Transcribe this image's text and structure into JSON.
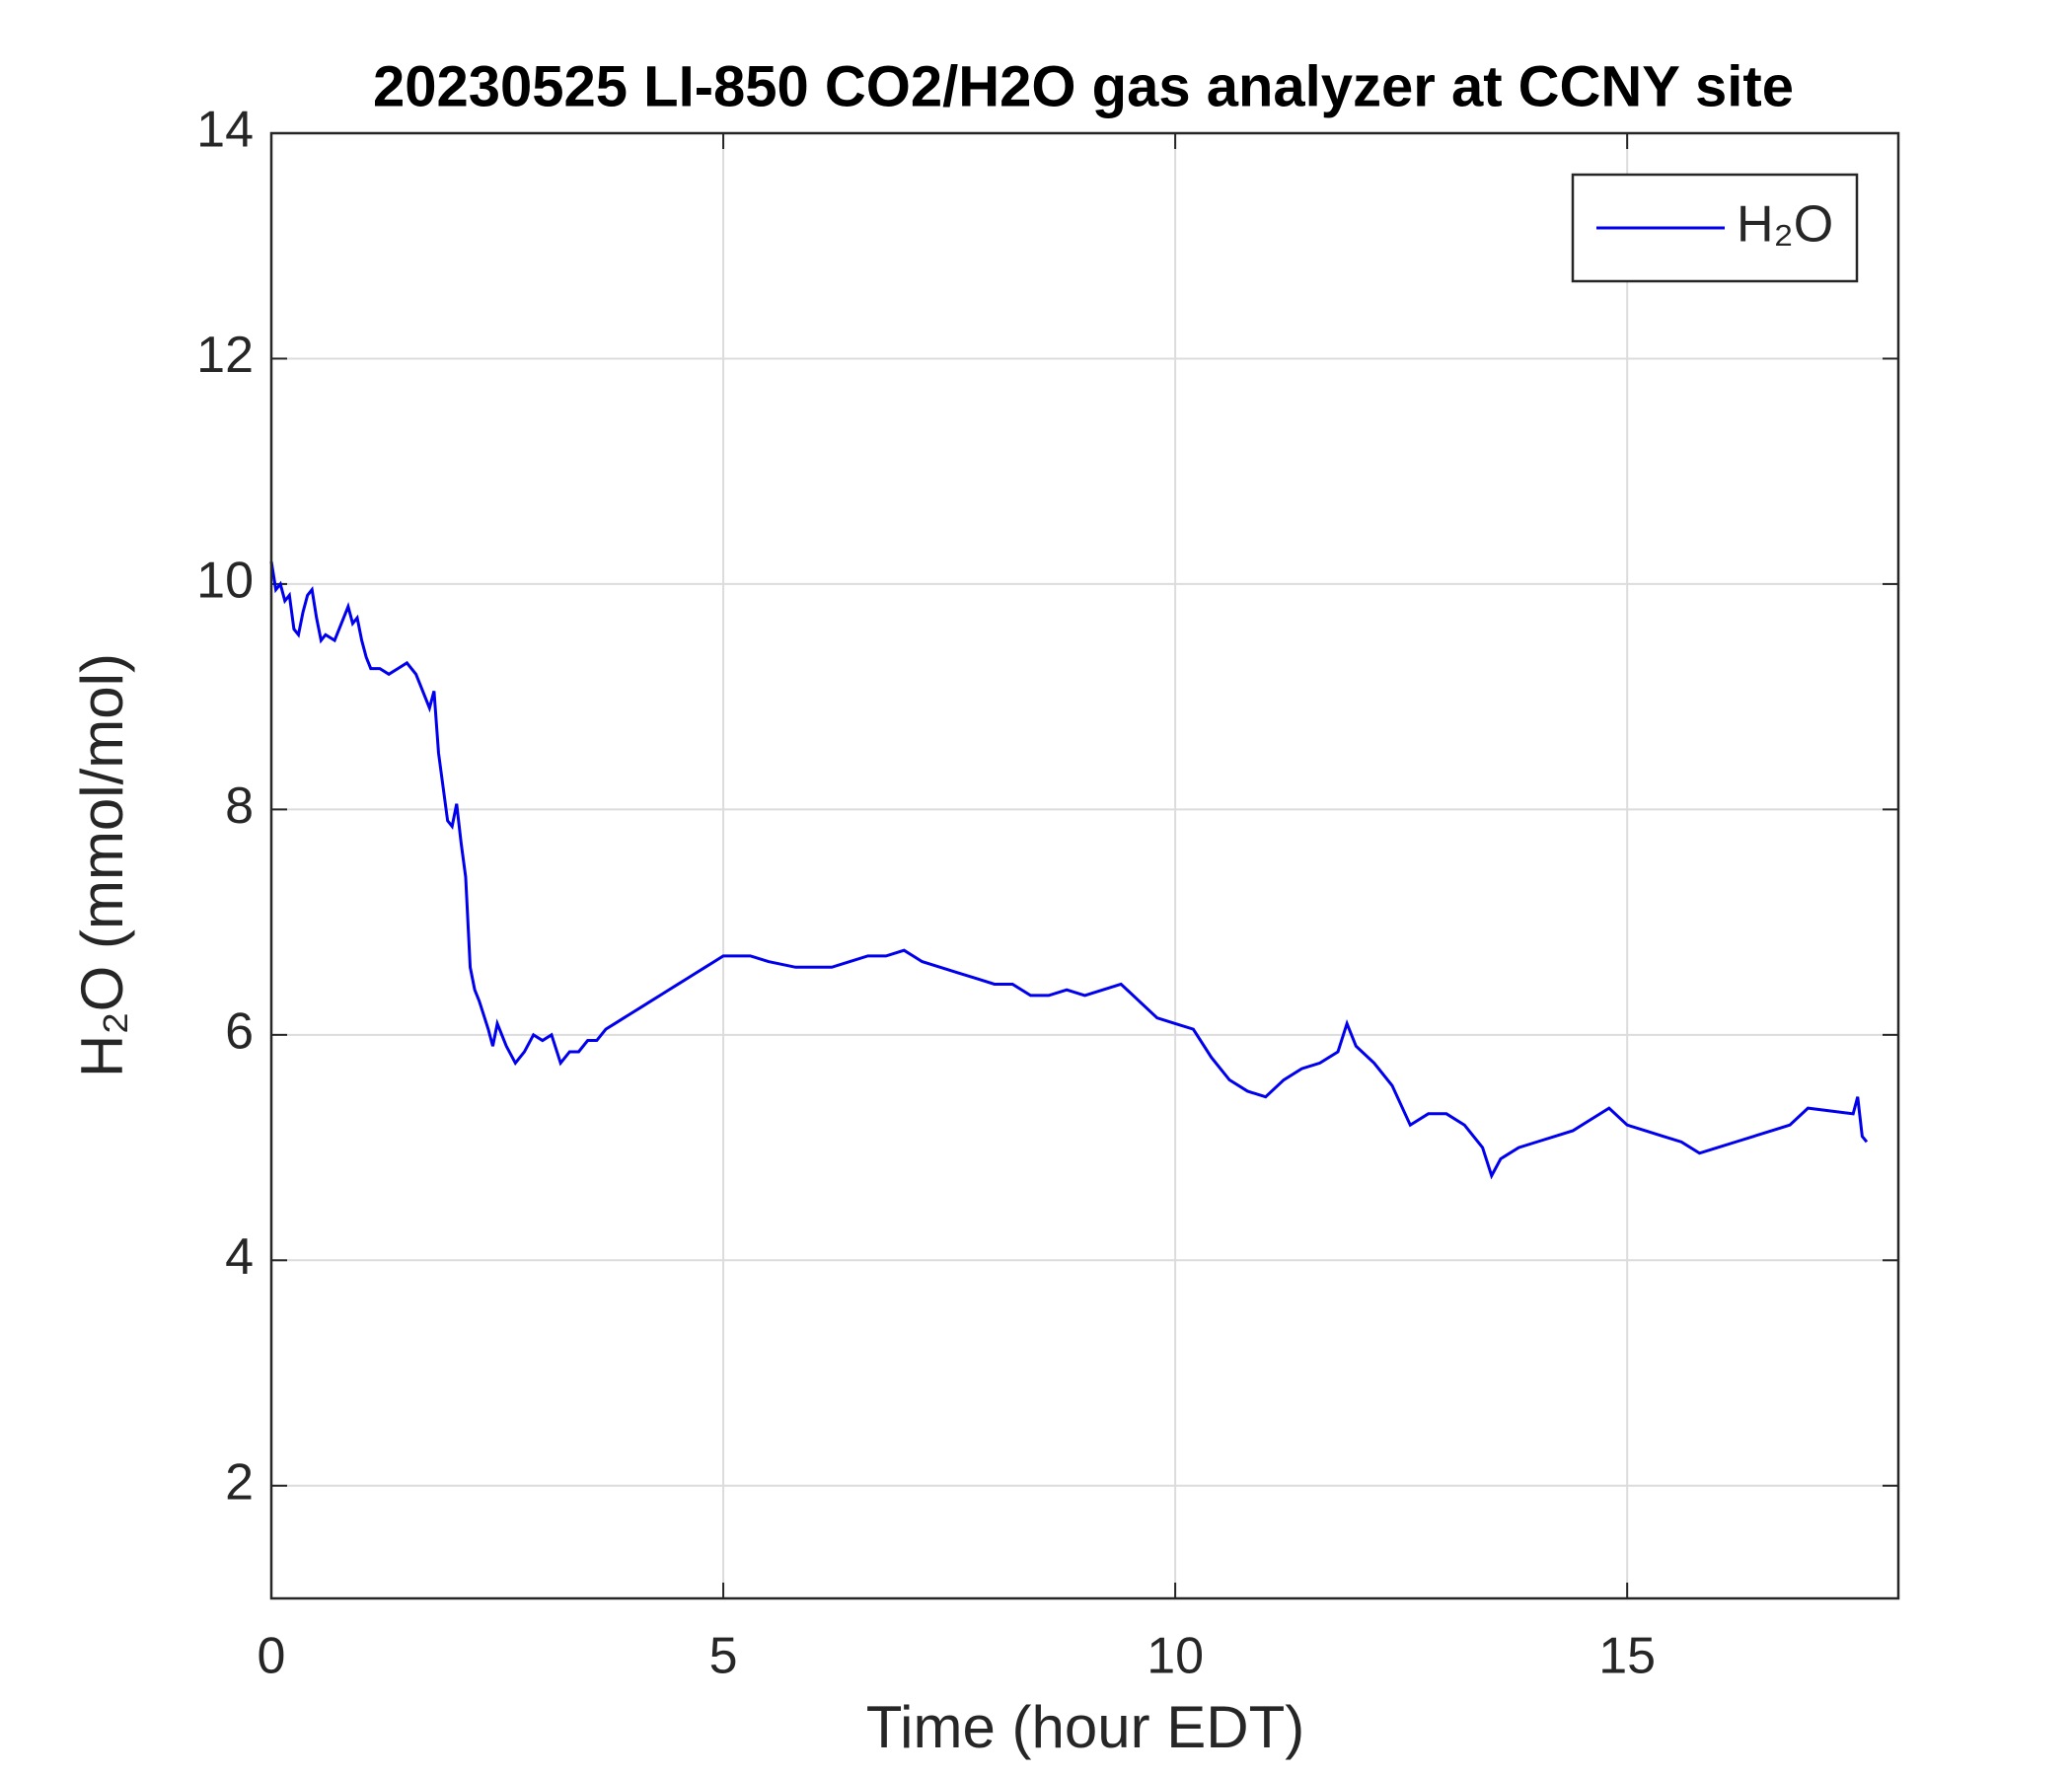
{
  "chart_data": {
    "type": "line",
    "title": "20230525 LI-850 CO2/H2O gas analyzer at CCNY site",
    "xlabel": "Time (hour EDT)",
    "ylabel": "H₂O (mmol/mol)",
    "x": [
      0,
      0.05,
      0.1,
      0.15,
      0.2,
      0.25,
      0.3,
      0.35,
      0.4,
      0.45,
      0.5,
      0.55,
      0.6,
      0.7,
      0.8,
      0.85,
      0.9,
      0.95,
      1.0,
      1.05,
      1.1,
      1.2,
      1.3,
      1.4,
      1.5,
      1.6,
      1.65,
      1.7,
      1.75,
      1.8,
      1.85,
      1.9,
      1.95,
      2.0,
      2.05,
      2.1,
      2.15,
      2.2,
      2.25,
      2.3,
      2.4,
      2.45,
      2.5,
      2.6,
      2.7,
      2.8,
      2.9,
      3.0,
      3.1,
      3.2,
      3.3,
      3.4,
      3.5,
      3.6,
      3.7,
      3.8,
      3.9,
      4.0,
      4.1,
      4.2,
      4.3,
      4.4,
      4.5,
      4.6,
      4.7,
      4.8,
      4.9,
      5.0,
      5.3,
      5.5,
      5.8,
      6.0,
      6.2,
      6.4,
      6.6,
      6.8,
      7.0,
      7.1,
      7.2,
      7.4,
      7.6,
      7.8,
      8.0,
      8.2,
      8.4,
      8.6,
      8.8,
      9.0,
      9.2,
      9.4,
      9.6,
      9.8,
      10.0,
      10.2,
      10.4,
      10.6,
      10.8,
      11.0,
      11.2,
      11.4,
      11.6,
      11.8,
      11.9,
      12.0,
      12.2,
      12.4,
      12.6,
      12.8,
      13.0,
      13.2,
      13.4,
      13.5,
      13.6,
      13.8,
      14.0,
      14.2,
      14.4,
      14.6,
      14.8,
      15.0,
      15.2,
      15.4,
      15.6,
      15.8,
      16.0,
      16.2,
      16.4,
      16.6,
      16.8,
      17.0,
      17.5,
      17.55,
      17.6,
      17.65
    ],
    "series": [
      {
        "name": "H₂O",
        "color": "#0000ee",
        "values": [
          10.2,
          9.95,
          10.0,
          9.85,
          9.9,
          9.6,
          9.55,
          9.75,
          9.9,
          9.95,
          9.7,
          9.5,
          9.55,
          9.5,
          9.7,
          9.8,
          9.65,
          9.7,
          9.5,
          9.35,
          9.25,
          9.25,
          9.2,
          9.25,
          9.3,
          9.2,
          9.1,
          9.0,
          8.9,
          9.05,
          8.5,
          8.2,
          7.9,
          7.85,
          8.05,
          7.7,
          7.4,
          6.6,
          6.4,
          6.3,
          6.05,
          5.9,
          6.1,
          5.9,
          5.75,
          5.85,
          6.0,
          5.95,
          6.0,
          5.75,
          5.85,
          5.85,
          5.95,
          5.95,
          6.05,
          6.1,
          6.15,
          6.2,
          6.25,
          6.3,
          6.35,
          6.4,
          6.45,
          6.5,
          6.55,
          6.6,
          6.65,
          6.7,
          6.7,
          6.65,
          6.6,
          6.6,
          6.6,
          6.65,
          6.7,
          6.7,
          6.75,
          6.7,
          6.65,
          6.6,
          6.55,
          6.5,
          6.45,
          6.45,
          6.35,
          6.35,
          6.4,
          6.35,
          6.4,
          6.45,
          6.3,
          6.15,
          6.1,
          6.05,
          5.8,
          5.6,
          5.5,
          5.45,
          5.6,
          5.7,
          5.75,
          5.85,
          6.1,
          5.9,
          5.75,
          5.55,
          5.2,
          5.3,
          5.3,
          5.2,
          5.0,
          4.75,
          4.9,
          5.0,
          5.05,
          5.1,
          5.15,
          5.25,
          5.35,
          5.2,
          5.15,
          5.1,
          5.05,
          4.95,
          5.0,
          5.05,
          5.1,
          5.15,
          5.2,
          5.35,
          5.3,
          5.45,
          5.1,
          5.05
        ]
      }
    ],
    "xlim": [
      0,
      18
    ],
    "xticks": [
      0,
      5,
      10,
      15
    ],
    "ylim": [
      1,
      14
    ],
    "yticks": [
      2,
      4,
      6,
      8,
      10,
      12,
      14
    ],
    "grid": true,
    "legend": "upper right"
  }
}
